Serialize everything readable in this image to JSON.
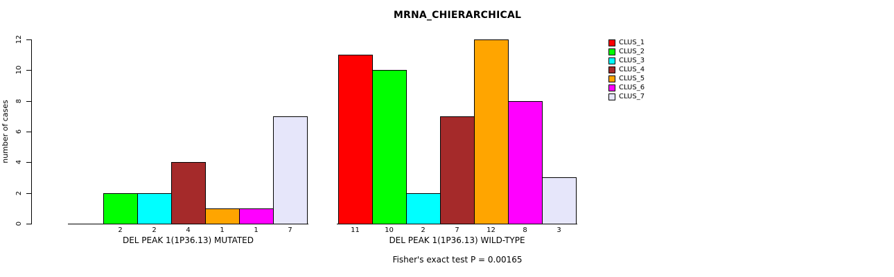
{
  "title": "MRNA_CHIERARCHICAL",
  "footer": "Fisher's exact test P = 0.00165",
  "chart_data": {
    "type": "bar",
    "title": "MRNA_CHIERARCHICAL",
    "xlabel": "",
    "ylabel": "number of cases",
    "ylim": [
      0,
      12
    ],
    "yticks": [
      0,
      2,
      4,
      6,
      8,
      10,
      12
    ],
    "grid": false,
    "legend_position": "right",
    "annotation": "Fisher's exact test P = 0.00165",
    "series": [
      {
        "name": "CLUS_1",
        "color": "#FF0000"
      },
      {
        "name": "CLUS_2",
        "color": "#00FF00"
      },
      {
        "name": "CLUS_3",
        "color": "#00FFFF"
      },
      {
        "name": "CLUS_4",
        "color": "#A52A2A"
      },
      {
        "name": "CLUS_5",
        "color": "#FFA500"
      },
      {
        "name": "CLUS_6",
        "color": "#FF00FF"
      },
      {
        "name": "CLUS_7",
        "color": "#E6E6FA"
      }
    ],
    "groups": [
      {
        "label": "DEL PEAK 1(1P36.13) MUTATED",
        "values": [
          0,
          2,
          2,
          4,
          1,
          1,
          7
        ],
        "bar_labels": [
          "",
          "2",
          "2",
          "4",
          "1",
          "1",
          "7"
        ]
      },
      {
        "label": "DEL PEAK 1(1P36.13) WILD-TYPE",
        "values": [
          11,
          10,
          2,
          7,
          12,
          8,
          3
        ],
        "bar_labels": [
          "11",
          "10",
          "2",
          "7",
          "12",
          "8",
          "3"
        ]
      }
    ]
  }
}
